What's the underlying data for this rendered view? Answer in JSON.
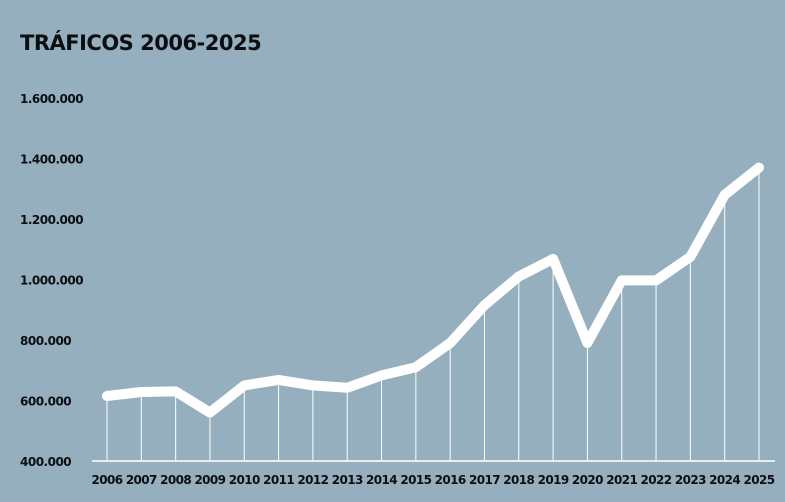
{
  "chart_data": {
    "type": "line",
    "title": "TRÁFICOS 2006-2025",
    "xlabel": "",
    "ylabel": "",
    "ylim": [
      400000,
      1600000
    ],
    "yticks": [
      "400.000",
      "600.000",
      "800.000",
      "1.000.000",
      "1.200.000",
      "1.400.000",
      "1.600.000"
    ],
    "ytick_values": [
      400000,
      600000,
      800000,
      1000000,
      1200000,
      1400000,
      1600000
    ],
    "categories": [
      "2006",
      "2007",
      "2008",
      "2009",
      "2010",
      "2011",
      "2012",
      "2013",
      "2014",
      "2015",
      "2016",
      "2017",
      "2018",
      "2019",
      "2020",
      "2021",
      "2022",
      "2023",
      "2024",
      "2025"
    ],
    "series": [
      {
        "values": [
          615000,
          628000,
          630000,
          560000,
          650000,
          668000,
          650000,
          642000,
          683000,
          710000,
          790000,
          915000,
          1010000,
          1068000,
          790000,
          997000,
          997000,
          1075000,
          1280000,
          1370000
        ]
      }
    ],
    "grid": false,
    "drop_lines": true,
    "colors": {
      "background": "#96afbe",
      "line": "#ffffff",
      "text": "#0b0f12"
    }
  }
}
